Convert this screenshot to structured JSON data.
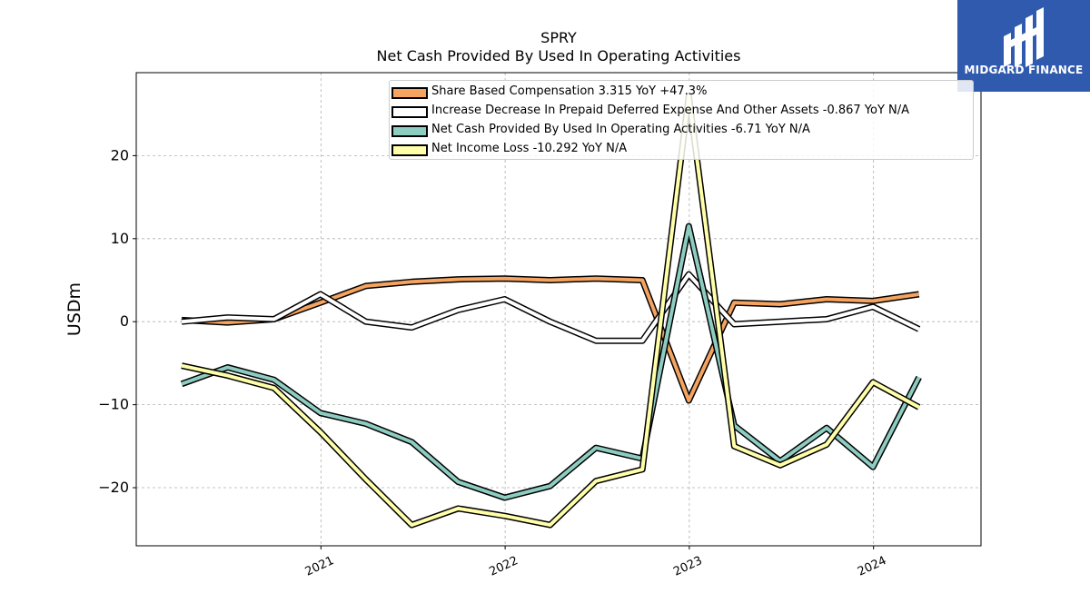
{
  "header": {
    "ticker": "SPRY",
    "subtitle": "Net Cash Provided By Used In Operating Activities"
  },
  "logo": {
    "text": "MIDGARD FINANCE",
    "icon": "midgard-m-icon",
    "color": "#2f5aae"
  },
  "chart_data": {
    "type": "line",
    "title": "SPRY",
    "subtitle": "Net Cash Provided By Used In Operating Activities",
    "ylabel": "USDm",
    "xlabel": "",
    "xticks": [
      "2021",
      "2022",
      "2023",
      "2024"
    ],
    "yticks": [
      -20,
      -10,
      0,
      10,
      20
    ],
    "ylim": [
      -27,
      30
    ],
    "grid": true,
    "legend_position": "top",
    "x": [
      "2020-03-31",
      "2020-06-30",
      "2020-09-30",
      "2020-12-31",
      "2021-03-31",
      "2021-06-30",
      "2021-09-30",
      "2021-12-31",
      "2022-03-31",
      "2022-06-30",
      "2022-09-30",
      "2022-12-31",
      "2023-03-31",
      "2023-06-30",
      "2023-09-30",
      "2023-12-31",
      "2024-03-31"
    ],
    "series": [
      {
        "name": "Share Based Compensation",
        "legend": "Share Based Compensation  3.315 YoY +47.3%",
        "color": "#f4a460",
        "values": [
          0.2,
          -0.1,
          0.3,
          2.3,
          4.3,
          4.8,
          5.1,
          5.2,
          5.0,
          5.2,
          5.0,
          -9.5,
          2.3,
          2.1,
          2.7,
          2.5,
          3.3
        ]
      },
      {
        "name": "Increase Decrease In Prepaid Deferred Expense And Other Assets",
        "legend": "Increase Decrease In Prepaid Deferred Expense And Other Assets  -0.867 YoY N/A",
        "color": "#ffffff",
        "values": [
          0.0,
          0.5,
          0.3,
          3.3,
          0.0,
          -0.7,
          1.4,
          2.7,
          0.0,
          -2.3,
          -2.3,
          5.7,
          -0.3,
          0.0,
          0.3,
          1.8,
          -0.9
        ]
      },
      {
        "name": "Net Cash Provided By Used In Operating Activities",
        "legend": "Net Cash Provided By Used In Operating Activities  -6.71 YoY N/A",
        "color": "#8dcdc1",
        "values": [
          -7.5,
          -5.5,
          -7.0,
          -11.0,
          -12.3,
          -14.5,
          -19.3,
          -21.2,
          -19.8,
          -15.2,
          -16.5,
          11.5,
          -12.5,
          -16.8,
          -12.8,
          -17.5,
          -6.7
        ]
      },
      {
        "name": "Net Income Loss",
        "legend": "Net Income Loss  -10.292 YoY N/A",
        "color": "#ffffaa",
        "values": [
          -5.3,
          -6.5,
          -8.0,
          -13.3,
          -19.0,
          -24.5,
          -22.5,
          -23.4,
          -24.5,
          -19.2,
          -17.8,
          27.2,
          -15.0,
          -17.3,
          -14.8,
          -7.3,
          -10.3
        ]
      }
    ]
  }
}
